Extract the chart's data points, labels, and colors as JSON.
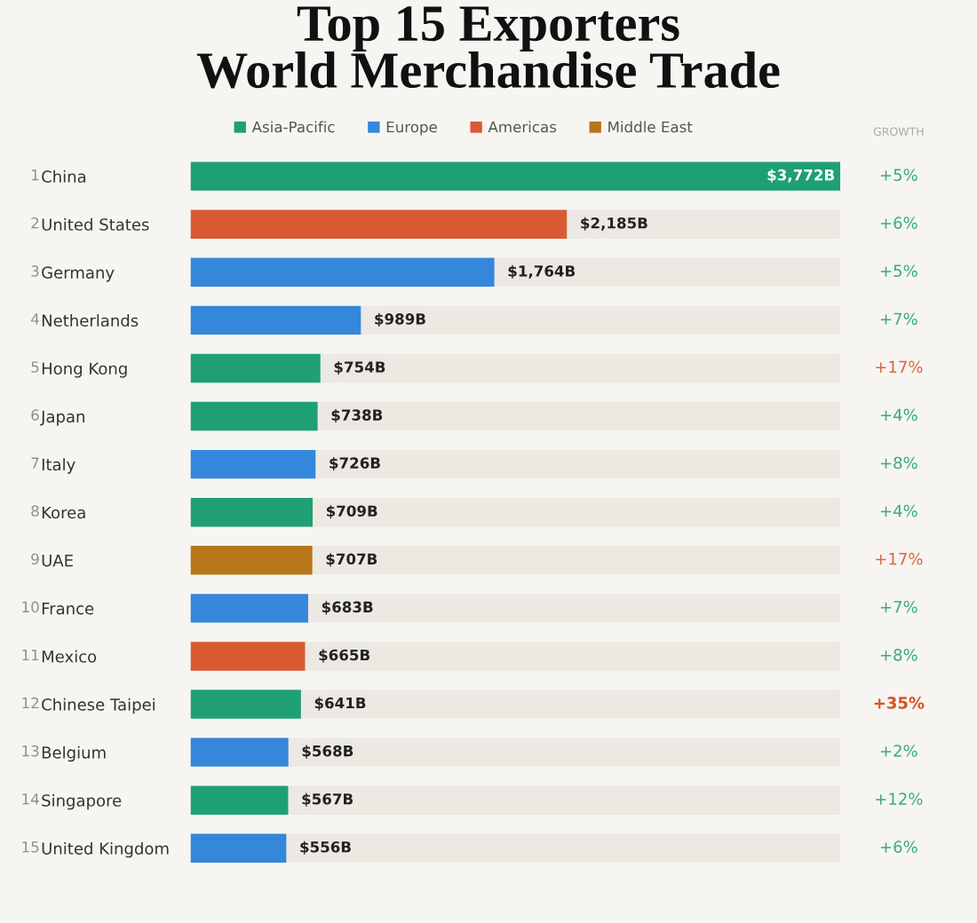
{
  "chart_data": {
    "type": "bar",
    "orientation": "horizontal",
    "title": "Top 15 Exporters\nWorld Merchandise Trade",
    "categories": [
      "China",
      "United States",
      "Germany",
      "Netherlands",
      "Hong Kong",
      "Japan",
      "Italy",
      "Korea",
      "UAE",
      "France",
      "Mexico",
      "Chinese Taipei",
      "Belgium",
      "Singapore",
      "United Kingdom"
    ],
    "series": [
      {
        "name": "Asia-Pacific",
        "color": "#1fa074",
        "values": [
          3772,
          null,
          null,
          null,
          754,
          738,
          null,
          709,
          null,
          null,
          null,
          641,
          null,
          567,
          null
        ],
        "value_labels": [
          "$3,772B",
          null,
          null,
          null,
          "$754B",
          "$738B",
          null,
          "$709B",
          null,
          null,
          null,
          "$641B",
          null,
          "$567B",
          null
        ]
      },
      {
        "name": "Europe",
        "color": "#3487db",
        "values": [
          null,
          null,
          1764,
          989,
          null,
          null,
          726,
          null,
          null,
          683,
          null,
          null,
          568,
          null,
          556
        ],
        "value_labels": [
          null,
          null,
          "$1,764B",
          "$989B",
          null,
          null,
          "$726B",
          null,
          null,
          "$683B",
          null,
          null,
          "$568B",
          null,
          "$556B"
        ]
      },
      {
        "name": "Americas",
        "color": "#d95b32",
        "values": [
          null,
          2185,
          null,
          null,
          null,
          null,
          null,
          null,
          null,
          null,
          665,
          null,
          null,
          null,
          null
        ],
        "value_labels": [
          null,
          "$2,185B",
          null,
          null,
          null,
          null,
          null,
          null,
          null,
          null,
          "$665B",
          null,
          null,
          null,
          null
        ]
      },
      {
        "name": "Middle East",
        "color": "#b8761a",
        "values": [
          null,
          null,
          null,
          null,
          null,
          null,
          null,
          null,
          707,
          null,
          null,
          null,
          null,
          null,
          null
        ],
        "value_labels": [
          null,
          null,
          null,
          null,
          null,
          null,
          null,
          null,
          "$707B",
          null,
          null,
          null,
          null,
          null,
          null
        ]
      }
    ],
    "xlim": [
      0,
      3772
    ],
    "tick_labels": "y",
    "grid": false,
    "legend": "top",
    "annotations": [
      "GROWTH",
      "+5%",
      "+6%",
      "+5%",
      "+7%",
      "+17%",
      "+4%",
      "+8%",
      "+4%",
      "+17%",
      "+7%",
      "+8%",
      "+35%",
      "+2%",
      "+12%",
      "+6%",
      "1",
      "2",
      "3",
      "4",
      "5",
      "6",
      "7",
      "8",
      "9",
      "10",
      "11",
      "12",
      "13",
      "14",
      "15"
    ]
  }
}
